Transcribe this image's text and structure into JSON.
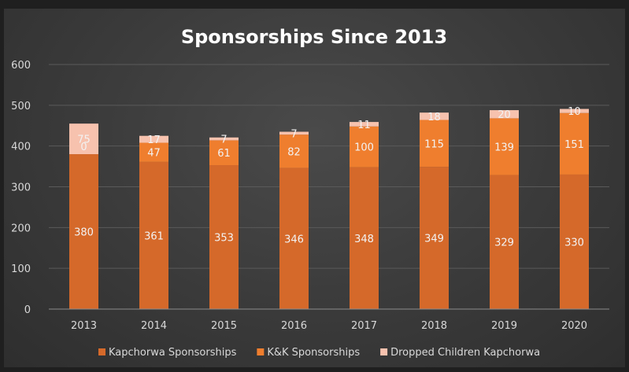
{
  "chart_data": {
    "type": "bar",
    "stacked": true,
    "title": "Sponsorships Since 2013",
    "xlabel": "",
    "ylabel": "",
    "categories": [
      "2013",
      "2014",
      "2015",
      "2016",
      "2017",
      "2018",
      "2019",
      "2020"
    ],
    "ylim": [
      0,
      600
    ],
    "yticks": [
      0,
      100,
      200,
      300,
      400,
      500,
      600
    ],
    "grid": true,
    "legend_position": "bottom",
    "series": [
      {
        "name": "Kapchorwa Sponsorships",
        "color": "#d5692a",
        "values": [
          380,
          361,
          353,
          346,
          348,
          349,
          329,
          330
        ]
      },
      {
        "name": "K&K Sponsorships",
        "color": "#ef7e2e",
        "values": [
          0,
          47,
          61,
          82,
          100,
          115,
          139,
          151
        ]
      },
      {
        "name": "Dropped Children Kapchorwa",
        "color": "#f7c2ae",
        "values": [
          75,
          17,
          7,
          7,
          11,
          18,
          20,
          10
        ]
      }
    ]
  }
}
